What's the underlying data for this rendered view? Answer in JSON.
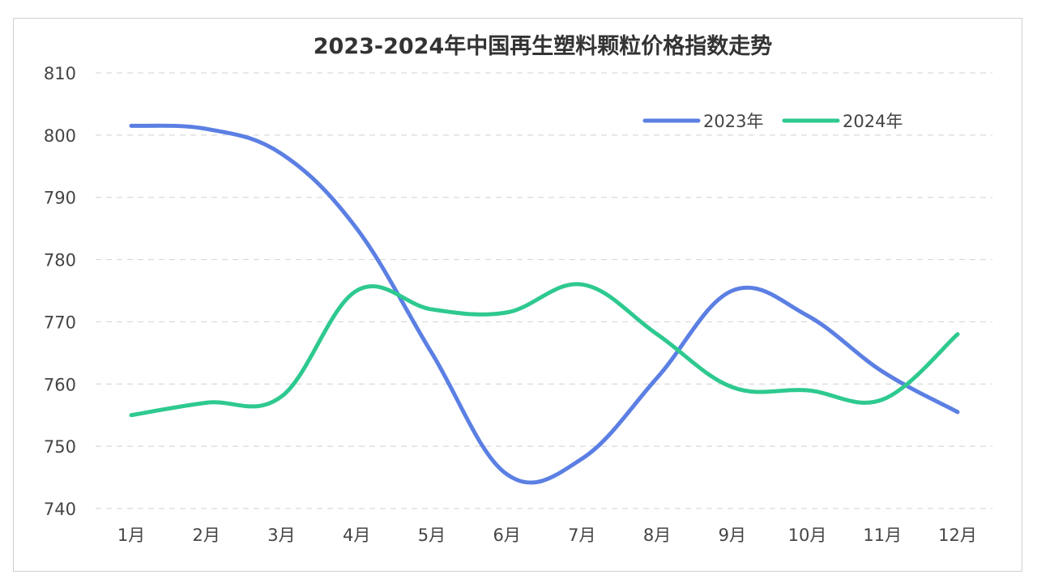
{
  "chart_data": {
    "type": "line",
    "title": "2023-2024年中国再生塑料颗粒价格指数走势",
    "categories": [
      "1月",
      "2月",
      "3月",
      "4月",
      "5月",
      "6月",
      "7月",
      "8月",
      "9月",
      "10月",
      "11月",
      "12月"
    ],
    "series": [
      {
        "name": "2023年",
        "color": "#5b7fe3",
        "values": [
          801.5,
          801.0,
          797.0,
          785.0,
          765.0,
          745.5,
          748.0,
          761.0,
          775.0,
          771.0,
          762.0,
          755.5
        ]
      },
      {
        "name": "2024年",
        "color": "#2ec98f",
        "values": [
          755.0,
          757.0,
          758.0,
          775.0,
          772.0,
          771.5,
          776.0,
          768.0,
          759.5,
          759.0,
          757.5,
          768.0
        ]
      }
    ],
    "ylim": [
      740,
      810
    ],
    "yticks": [
      740,
      750,
      760,
      770,
      780,
      790,
      800,
      810
    ],
    "grid": true,
    "legend_position": "top-right",
    "xlabel": "",
    "ylabel": ""
  }
}
